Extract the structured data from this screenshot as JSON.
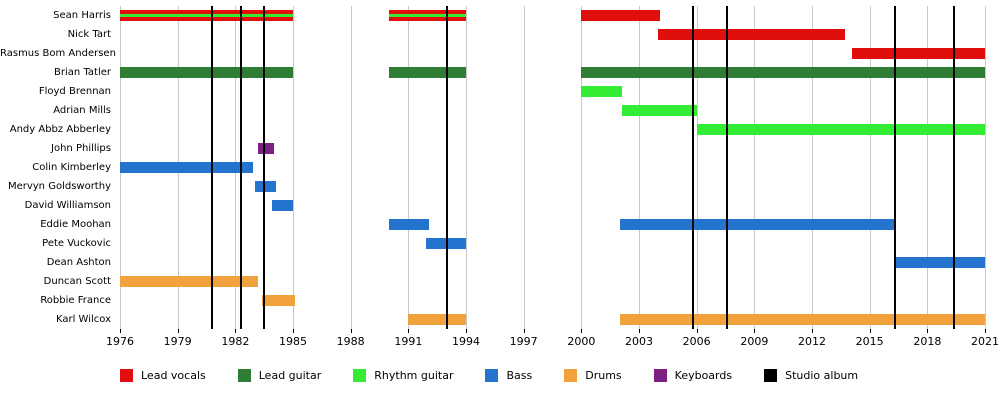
{
  "chart_data": {
    "type": "timeline",
    "x_axis": {
      "min": 1976,
      "max": 2021,
      "tick_interval": 3,
      "ticks": [
        1976,
        1979,
        1982,
        1985,
        1988,
        1991,
        1994,
        1997,
        2000,
        2003,
        2006,
        2009,
        2012,
        2015,
        2018,
        2021
      ]
    },
    "colors": {
      "lead_vocals": "#e10e0e",
      "lead_guitar": "#2e7d33",
      "rhythm_guitar": "#35ec35",
      "bass": "#2373cf",
      "drums": "#f1a23d",
      "keyboards": "#7c2183",
      "studio_album": "#000000",
      "gridline": "#c9c9c9"
    },
    "members": [
      {
        "label": "Sean Harris",
        "bars": [
          {
            "from": 1976,
            "to": 1985,
            "roles": [
              "lead_vocals",
              "rhythm_guitar"
            ]
          },
          {
            "from": 1990,
            "to": 1994,
            "roles": [
              "lead_vocals",
              "rhythm_guitar"
            ]
          },
          {
            "from": 2000,
            "to": 2004.1,
            "roles": [
              "lead_vocals"
            ]
          }
        ]
      },
      {
        "label": "Nick Tart",
        "bars": [
          {
            "from": 2004,
            "to": 2013.7,
            "roles": [
              "lead_vocals"
            ]
          }
        ]
      },
      {
        "label": "Rasmus Bom Andersen",
        "bars": [
          {
            "from": 2014.1,
            "to": 2021,
            "roles": [
              "lead_vocals"
            ]
          }
        ]
      },
      {
        "label": "Brian Tatler",
        "bars": [
          {
            "from": 1976,
            "to": 1985,
            "roles": [
              "lead_guitar"
            ]
          },
          {
            "from": 1990,
            "to": 1994,
            "roles": [
              "lead_guitar"
            ]
          },
          {
            "from": 2000,
            "to": 2021,
            "roles": [
              "lead_guitar"
            ]
          }
        ]
      },
      {
        "label": "Floyd Brennan",
        "bars": [
          {
            "from": 2000,
            "to": 2002.1,
            "roles": [
              "rhythm_guitar"
            ]
          }
        ]
      },
      {
        "label": "Adrian Mills",
        "bars": [
          {
            "from": 2002.1,
            "to": 2006,
            "roles": [
              "rhythm_guitar"
            ]
          }
        ]
      },
      {
        "label": "Andy Abbz Abberley",
        "bars": [
          {
            "from": 2006,
            "to": 2021,
            "roles": [
              "rhythm_guitar"
            ]
          }
        ]
      },
      {
        "label": "John Phillips",
        "bars": [
          {
            "from": 1983.2,
            "to": 1984,
            "roles": [
              "keyboards"
            ]
          }
        ]
      },
      {
        "label": "Colin Kimberley",
        "bars": [
          {
            "from": 1976,
            "to": 1982.9,
            "roles": [
              "bass"
            ]
          }
        ]
      },
      {
        "label": "Mervyn Goldsworthy",
        "bars": [
          {
            "from": 1983,
            "to": 1984.1,
            "roles": [
              "bass"
            ]
          }
        ]
      },
      {
        "label": "David Williamson",
        "bars": [
          {
            "from": 1983.9,
            "to": 1985,
            "roles": [
              "bass"
            ]
          }
        ]
      },
      {
        "label": "Eddie Moohan",
        "bars": [
          {
            "from": 1990,
            "to": 1992.1,
            "roles": [
              "bass"
            ]
          },
          {
            "from": 2002,
            "to": 2016.3,
            "roles": [
              "bass"
            ]
          }
        ]
      },
      {
        "label": "Pete Vuckovic",
        "bars": [
          {
            "from": 1991.9,
            "to": 1994,
            "roles": [
              "bass"
            ]
          }
        ]
      },
      {
        "label": "Dean Ashton",
        "bars": [
          {
            "from": 2016.3,
            "to": 2021,
            "roles": [
              "bass"
            ]
          }
        ]
      },
      {
        "label": "Duncan Scott",
        "bars": [
          {
            "from": 1976,
            "to": 1983.2,
            "roles": [
              "drums"
            ]
          }
        ]
      },
      {
        "label": "Robbie France",
        "bars": [
          {
            "from": 1983.4,
            "to": 1985.1,
            "roles": [
              "drums"
            ]
          }
        ]
      },
      {
        "label": "Karl Wilcox",
        "bars": [
          {
            "from": 1991,
            "to": 1994,
            "roles": [
              "drums"
            ]
          },
          {
            "from": 2002,
            "to": 2021,
            "roles": [
              "drums"
            ]
          }
        ]
      }
    ],
    "album_lines": [
      1980.8,
      1982.3,
      1983.5,
      1993.0,
      2005.8,
      2007.6,
      2016.3,
      2019.4
    ],
    "legend": [
      {
        "label": "Lead vocals",
        "key": "lead_vocals"
      },
      {
        "label": "Lead guitar",
        "key": "lead_guitar"
      },
      {
        "label": "Rhythm guitar",
        "key": "rhythm_guitar"
      },
      {
        "label": "Bass",
        "key": "bass"
      },
      {
        "label": "Drums",
        "key": "drums"
      },
      {
        "label": "Keyboards",
        "key": "keyboards"
      },
      {
        "label": "Studio album",
        "key": "studio_album"
      }
    ]
  }
}
